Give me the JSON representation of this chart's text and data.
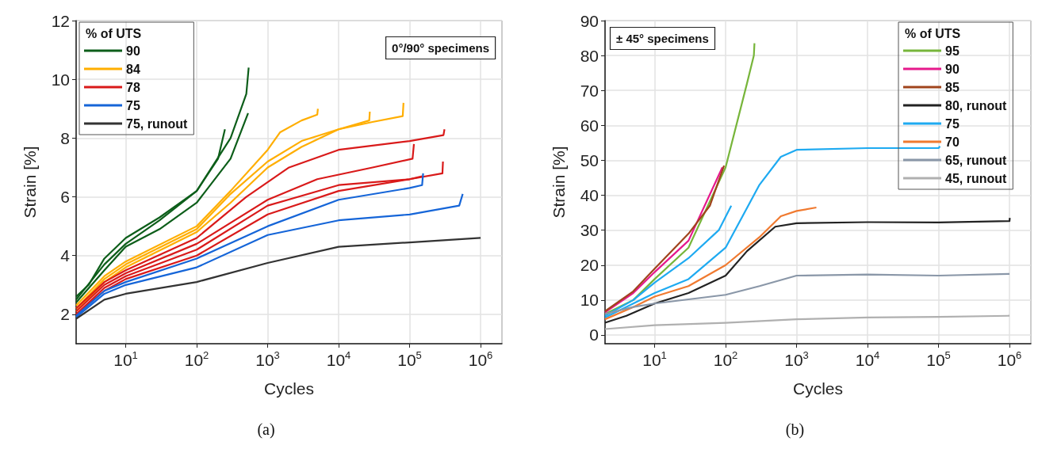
{
  "chart_data": [
    {
      "type": "line",
      "xlabel": "Cycles",
      "ylabel": "Strain [%]",
      "legend_title": "% of UTS",
      "annotations": [
        "0°/90° specimens",
        "(a)"
      ],
      "log": "x",
      "grid": true,
      "legend": "top left",
      "xlim": [
        2,
        2000000
      ],
      "xticks": [
        {
          "value": 10,
          "label": "10$^{1}$"
        },
        {
          "value": 100,
          "label": "10$^{2}$"
        },
        {
          "value": 1000,
          "label": "10$^{3}$"
        },
        {
          "value": 10000,
          "label": "10$^{4}$"
        },
        {
          "value": 100000,
          "label": "10$^{5}$"
        },
        {
          "value": 1000000,
          "label": "10$^{6}$"
        }
      ],
      "ylim": [
        1,
        12
      ],
      "yticks": [
        2,
        4,
        6,
        8,
        10,
        12
      ],
      "series": [
        {
          "name": "90",
          "color": "#0d5e1a",
          "x": [
            2,
            3,
            5,
            10,
            30,
            100,
            200,
            250
          ],
          "values": [
            2.6,
            3.0,
            3.9,
            4.6,
            5.3,
            6.2,
            7.3,
            8.3
          ]
        },
        {
          "color": "#0d5e1a",
          "x": [
            2,
            5,
            10,
            30,
            100,
            300,
            500,
            540
          ],
          "values": [
            2.5,
            3.7,
            4.4,
            5.2,
            6.2,
            8.0,
            9.5,
            10.4
          ]
        },
        {
          "color": "#0d5e1a",
          "x": [
            2,
            5,
            10,
            30,
            100,
            300,
            530
          ],
          "values": [
            2.4,
            3.5,
            4.3,
            4.9,
            5.8,
            7.3,
            8.85
          ]
        },
        {
          "name": "84",
          "color": "#ffae00",
          "x": [
            2,
            5,
            10,
            100,
            300,
            1000,
            1500,
            3000,
            5000,
            5100
          ],
          "values": [
            2.3,
            3.3,
            3.8,
            5.0,
            6.2,
            7.6,
            8.2,
            8.6,
            8.8,
            9.0
          ]
        },
        {
          "color": "#ffae00",
          "x": [
            2,
            5,
            10,
            100,
            300,
            1000,
            3000,
            10000,
            27000,
            27500
          ],
          "values": [
            2.2,
            3.2,
            3.7,
            4.9,
            6.1,
            7.2,
            7.9,
            8.3,
            8.6,
            8.9
          ]
        },
        {
          "color": "#ffae00",
          "x": [
            2,
            5,
            10,
            100,
            300,
            1000,
            3000,
            10000,
            30000,
            80000,
            82000
          ],
          "values": [
            2.1,
            3.1,
            3.6,
            4.8,
            5.8,
            7.0,
            7.7,
            8.3,
            8.55,
            8.75,
            9.2
          ]
        },
        {
          "name": "78",
          "color": "#d91a1a",
          "x": [
            2,
            5,
            10,
            100,
            500,
            2000,
            10000,
            100000,
            300000,
            310000
          ],
          "values": [
            2.2,
            3.1,
            3.5,
            4.6,
            6.0,
            7.0,
            7.6,
            7.9,
            8.1,
            8.3
          ]
        },
        {
          "color": "#d91a1a",
          "x": [
            2,
            5,
            10,
            100,
            1000,
            5000,
            30000,
            110000,
            115000
          ],
          "values": [
            2.1,
            3.0,
            3.4,
            4.4,
            5.9,
            6.6,
            7.0,
            7.3,
            7.8
          ]
        },
        {
          "color": "#d91a1a",
          "x": [
            2,
            5,
            10,
            100,
            1000,
            10000,
            100000,
            290000,
            295000
          ],
          "values": [
            2.0,
            2.9,
            3.3,
            4.2,
            5.7,
            6.4,
            6.6,
            6.8,
            7.2
          ]
        },
        {
          "color": "#d91a1a",
          "x": [
            2,
            5,
            10,
            100,
            1000,
            10000,
            100000,
            150000
          ],
          "values": [
            2.0,
            2.8,
            3.2,
            4.0,
            5.4,
            6.2,
            6.6,
            6.7
          ]
        },
        {
          "name": "75",
          "color": "#1565d8",
          "x": [
            2,
            5,
            10,
            100,
            1000,
            10000,
            100000,
            150000,
            155000
          ],
          "values": [
            1.95,
            2.8,
            3.1,
            3.9,
            5.0,
            5.9,
            6.3,
            6.4,
            6.8
          ]
        },
        {
          "color": "#1565d8",
          "x": [
            2,
            5,
            10,
            100,
            1000,
            10000,
            100000,
            500000,
            560000
          ],
          "values": [
            1.9,
            2.7,
            3.0,
            3.6,
            4.7,
            5.2,
            5.4,
            5.7,
            6.1
          ]
        },
        {
          "name": "75, runout",
          "color": "#333333",
          "x": [
            2,
            5,
            10,
            100,
            1000,
            10000,
            100000,
            1000000
          ],
          "values": [
            1.85,
            2.5,
            2.7,
            3.1,
            3.75,
            4.3,
            4.45,
            4.6
          ]
        }
      ]
    },
    {
      "type": "line",
      "xlabel": "Cycles",
      "ylabel": "Strain [%]",
      "legend_title": "% of UTS",
      "annotations": [
        "± 45° specimens",
        "(b)"
      ],
      "log": "x",
      "grid": true,
      "legend": "top right",
      "xlim": [
        2,
        2000000
      ],
      "xticks": [
        {
          "value": 10,
          "label": "10$^{1}$"
        },
        {
          "value": 100,
          "label": "10$^{2}$"
        },
        {
          "value": 1000,
          "label": "10$^{3}$"
        },
        {
          "value": 10000,
          "label": "10$^{4}$"
        },
        {
          "value": 100000,
          "label": "10$^{5}$"
        },
        {
          "value": 1000000,
          "label": "10$^{6}$"
        }
      ],
      "ylim": [
        -2.5,
        90
      ],
      "yticks": [
        0,
        10,
        20,
        30,
        40,
        50,
        60,
        70,
        80,
        90
      ],
      "series": [
        {
          "name": "95",
          "color": "#77b53a",
          "x": [
            2,
            5,
            10,
            30,
            100,
            200,
            250,
            255
          ],
          "values": [
            6,
            10,
            16,
            25,
            48,
            72,
            80,
            83.5
          ]
        },
        {
          "name": "90",
          "color": "#e6198c",
          "x": [
            2,
            5,
            10,
            30,
            90
          ],
          "values": [
            6.5,
            12,
            18,
            27,
            48
          ]
        },
        {
          "name": "85",
          "color": "#a0441c",
          "x": [
            2,
            5,
            10,
            30,
            60,
            95
          ],
          "values": [
            6.8,
            12.5,
            19,
            29,
            37,
            48.5
          ]
        },
        {
          "name": "80, runout",
          "color": "#222222",
          "x": [
            2,
            4,
            10,
            30,
            100,
            200,
            500,
            1000,
            10000,
            100000,
            1000000,
            1010000
          ],
          "values": [
            3.5,
            5.5,
            9,
            12,
            17,
            24,
            31,
            32,
            32.3,
            32.2,
            32.6,
            33.5
          ]
        },
        {
          "name": "75",
          "color": "#1eaaf1",
          "x": [
            2,
            5,
            10,
            30,
            80,
            120
          ],
          "values": [
            5.5,
            10,
            15,
            22,
            30,
            37
          ]
        },
        {
          "color": "#1eaaf1",
          "x": [
            2,
            5,
            10,
            30,
            100,
            300,
            600,
            1000,
            10000,
            100000,
            105000
          ],
          "values": [
            5,
            9,
            12,
            16,
            25,
            43,
            51,
            53,
            53.5,
            53.5,
            54
          ]
        },
        {
          "name": "70",
          "color": "#f07a30",
          "x": [
            2,
            5,
            10,
            30,
            100,
            300,
            600,
            1000,
            1900
          ],
          "values": [
            4.5,
            8,
            11,
            14,
            20,
            28,
            34,
            35.5,
            36.5
          ]
        },
        {
          "name": "65, runout",
          "color": "#8a97a8",
          "x": [
            2,
            5,
            10,
            100,
            300,
            1000,
            10000,
            100000,
            1000000
          ],
          "values": [
            6,
            8,
            9,
            11.5,
            14,
            17,
            17.3,
            17,
            17.5
          ]
        },
        {
          "name": "45, runout",
          "color": "#b0b0b0",
          "x": [
            2,
            10,
            100,
            1000,
            10000,
            100000,
            1000000
          ],
          "values": [
            1.7,
            2.8,
            3.5,
            4.5,
            5,
            5.2,
            5.5
          ]
        }
      ]
    }
  ]
}
